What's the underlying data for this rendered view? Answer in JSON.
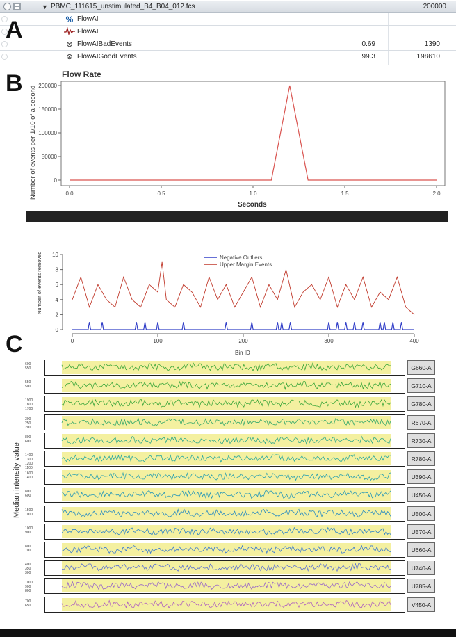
{
  "panel_letters": [
    "A",
    "B",
    "C"
  ],
  "table": {
    "header": {
      "name": "PBMC_111615_unstimulated_B4_B04_012.fcs",
      "count": "200000"
    },
    "rows": [
      {
        "icon": "percent-icon",
        "glyph": "%",
        "name": "FlowAI",
        "pct": "",
        "count": ""
      },
      {
        "icon": "waveform-icon",
        "glyph": "~",
        "name": "FlowAI",
        "pct": "",
        "count": ""
      },
      {
        "icon": "gate-icon",
        "glyph": "⊗",
        "name": "FlowAIBadEvents",
        "pct": "0.69",
        "count": "1390"
      },
      {
        "icon": "gate-icon",
        "glyph": "⊗",
        "name": "FlowAIGoodEvents",
        "pct": "99.3",
        "count": "198610"
      }
    ]
  },
  "flow_rate": {
    "title": "Flow Rate",
    "ylabel": "Number of events per 1/10 of a second",
    "xlabel": "Seconds"
  },
  "margin": {
    "ylabel": "Number of events removed",
    "xlabel": "Bin ID",
    "legend": [
      "Negative Outliers",
      "Upper Margin Events"
    ]
  },
  "median": {
    "ylabel": "Median intensity value",
    "channels": [
      "G660-A",
      "G710-A",
      "G780-A",
      "R670-A",
      "R730-A",
      "R780-A",
      "U390-A",
      "U450-A",
      "U500-A",
      "U570-A",
      "U660-A",
      "U740-A",
      "U785-A",
      "V450-A"
    ]
  },
  "chart_data": [
    {
      "type": "line",
      "title": "Flow Rate",
      "xlabel": "Seconds",
      "ylabel": "Number of events per 1/10 of a second",
      "xlim": [
        0,
        2.0
      ],
      "ylim": [
        0,
        200000
      ],
      "x_ticks": [
        "0.0",
        "0.5",
        "1.0",
        "1.5",
        "2.0"
      ],
      "y_ticks": [
        "0",
        "50000",
        "100000",
        "150000",
        "200000"
      ],
      "series": [
        {
          "color": "#d9534f",
          "x": [
            0.0,
            1.1,
            1.2,
            1.3,
            2.0
          ],
          "y": [
            0,
            0,
            200000,
            0,
            0
          ]
        }
      ]
    },
    {
      "type": "line",
      "xlabel": "Bin ID",
      "ylabel": "Number of events removed",
      "xlim": [
        0,
        400
      ],
      "ylim": [
        0,
        10
      ],
      "x_ticks": [
        "0",
        "100",
        "200",
        "300",
        "400"
      ],
      "y_ticks": [
        "0",
        "2",
        "4",
        "6",
        "8",
        "10"
      ],
      "legend_position": "top-center",
      "series": [
        {
          "name": "Negative Outliers",
          "color": "#3340c8",
          "x": [
            20,
            35,
            75,
            85,
            100,
            130,
            180,
            210,
            240,
            245,
            255,
            300,
            310,
            320,
            330,
            340,
            360,
            365,
            375,
            385
          ],
          "y": [
            1,
            1,
            1,
            1,
            1,
            1,
            1,
            1,
            1,
            1,
            1,
            1,
            1,
            1,
            1,
            1,
            1,
            1,
            1,
            1
          ]
        },
        {
          "name": "Upper Margin Events",
          "color": "#c0392b",
          "x": [
            0,
            10,
            20,
            30,
            40,
            50,
            60,
            70,
            80,
            90,
            100,
            105,
            110,
            120,
            130,
            140,
            150,
            160,
            170,
            180,
            190,
            200,
            210,
            220,
            230,
            240,
            250,
            260,
            270,
            280,
            290,
            300,
            310,
            320,
            330,
            340,
            350,
            360,
            370,
            380,
            390,
            400
          ],
          "y": [
            4,
            7,
            3,
            6,
            4,
            3,
            7,
            4,
            3,
            6,
            5,
            9,
            4,
            3,
            6,
            5,
            3,
            7,
            4,
            6,
            3,
            5,
            7,
            3,
            6,
            4,
            8,
            3,
            5,
            6,
            4,
            7,
            3,
            6,
            4,
            7,
            3,
            5,
            4,
            7,
            3,
            2
          ]
        }
      ]
    }
  ]
}
